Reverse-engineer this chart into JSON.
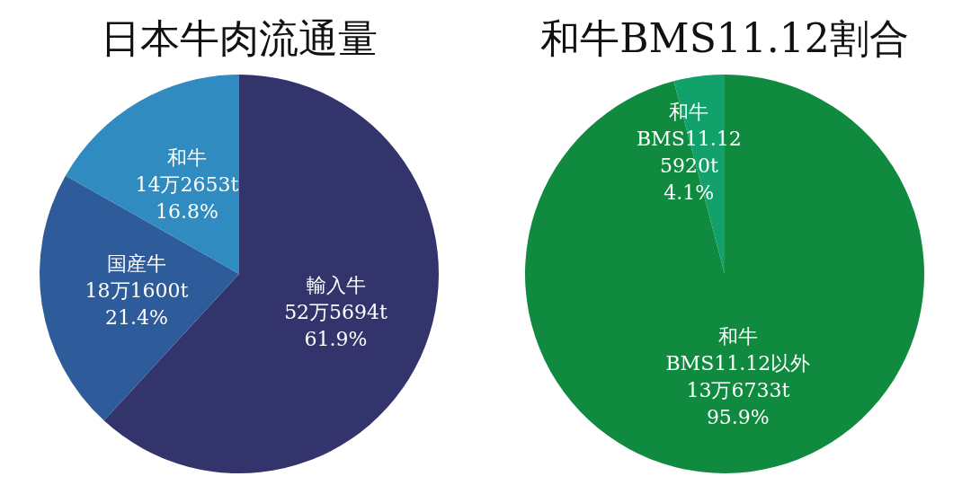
{
  "chart_data": [
    {
      "type": "pie",
      "title": "日本牛肉流通量",
      "categories": [
        "輸入牛\n52万5694t",
        "国産牛\n18万1600t",
        "和牛\n14万2653t"
      ],
      "values": [
        61.9,
        21.4,
        16.8
      ],
      "value_labels": [
        "61.9%",
        "21.4%",
        "16.8%"
      ],
      "colors": [
        "#33346b",
        "#2e5c9a",
        "#2f8bc0"
      ]
    },
    {
      "type": "pie",
      "title": "和牛BMS11.12割合",
      "categories": [
        "和牛\nBMS11.12以外\n13万6733t",
        "和牛\nBMS11.12\n5920t"
      ],
      "values": [
        95.9,
        4.1
      ],
      "value_labels": [
        "95.9%",
        "4.1%"
      ],
      "colors": [
        "#108a3e",
        "#12a06b"
      ]
    }
  ]
}
